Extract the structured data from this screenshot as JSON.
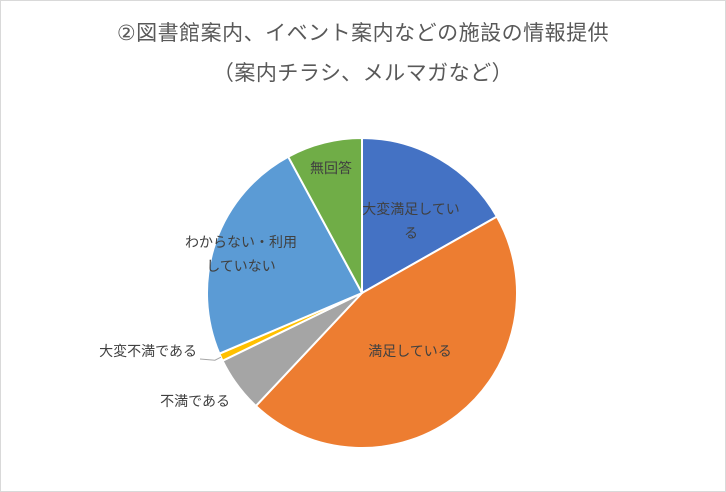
{
  "chart_data": {
    "type": "pie",
    "title": [
      "②図書館案内、イベント案内などの施設の情報提供",
      "（案内チラシ、メルマガなど）"
    ],
    "categories": [
      "大変満足している",
      "満足している",
      "不満である",
      "大変不満である",
      "わからない・利用していない",
      "無回答"
    ],
    "values": [
      16.8,
      45.2,
      5.8,
      0.8,
      23.5,
      7.9
    ],
    "colors": [
      "#4472c4",
      "#ed7d31",
      "#a5a5a5",
      "#ffc000",
      "#5b9bd5",
      "#70ad47"
    ],
    "labels": [
      [
        "大変満足してい",
        "る"
      ],
      [
        "満足している"
      ],
      [
        "不満である"
      ],
      [
        "大変不満である"
      ],
      [
        "わからない・利用",
        "していない"
      ],
      [
        "無回答"
      ]
    ],
    "start_angle_deg": 0,
    "direction": "clockwise",
    "legend": "none"
  }
}
